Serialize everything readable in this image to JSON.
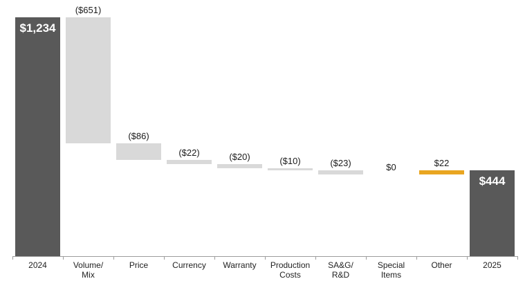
{
  "chart_data": {
    "type": "bar",
    "subtype": "waterfall",
    "title": "",
    "categories": [
      "2024",
      "Volume/\nMix",
      "Price",
      "Currency",
      "Warranty",
      "Production\nCosts",
      "SA&G/\nR&D",
      "Special\nItems",
      "Other",
      "2025"
    ],
    "steps": [
      {
        "category": "2024",
        "label": "$1,234",
        "value": 1234,
        "kind": "total"
      },
      {
        "category": "Volume/Mix",
        "label": "($651)",
        "value": -651,
        "kind": "decrease"
      },
      {
        "category": "Price",
        "label": "($86)",
        "value": -86,
        "kind": "decrease"
      },
      {
        "category": "Currency",
        "label": "($22)",
        "value": -22,
        "kind": "decrease"
      },
      {
        "category": "Warranty",
        "label": "($20)",
        "value": -20,
        "kind": "decrease"
      },
      {
        "category": "Production Costs",
        "label": "($10)",
        "value": -10,
        "kind": "decrease"
      },
      {
        "category": "SA&G/R&D",
        "label": "($23)",
        "value": -23,
        "kind": "decrease"
      },
      {
        "category": "Special Items",
        "label": "$0",
        "value": 0,
        "kind": "none"
      },
      {
        "category": "Other",
        "label": "$22",
        "value": 22,
        "kind": "increase"
      },
      {
        "category": "2025",
        "label": "$444",
        "value": 444,
        "kind": "total"
      }
    ],
    "ylim": [
      0,
      1234
    ],
    "legend": "off",
    "grid": "off",
    "colors": {
      "total": "#595959",
      "decrease": "#d9d9d9",
      "increase": "#e9a621",
      "none": "transparent",
      "label_inside": "#ffffff",
      "label_outside": "#1a1a1a",
      "axis": "#9c9c9c"
    }
  }
}
